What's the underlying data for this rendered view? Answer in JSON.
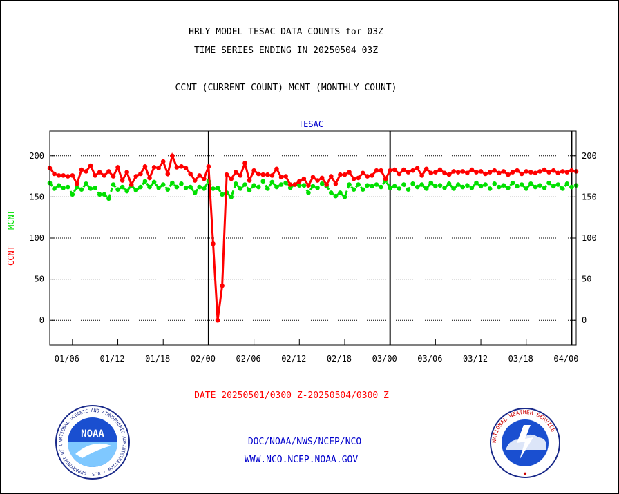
{
  "header": {
    "title_line1": "HRLY MODEL TESAC DATA COUNTS for 03Z",
    "title_line2": "TIME SERIES ENDING IN 20250504 03Z",
    "subtitle": "CCNT (CURRENT COUNT) MCNT (MONTHLY COUNT)"
  },
  "footer": {
    "date_range": "DATE 20250501/0300 Z-20250504/0300 Z",
    "link1": "DOC/NOAA/NWS/NCEP/NCO",
    "link2": "WWW.NCO.NCEP.NOAA.GOV"
  },
  "logos": {
    "noaa_text": "NOAA",
    "noaa_ring": "NATIONAL OCEANIC AND ATMOSPHERIC ADMINISTRATION · U.S. DEPARTMENT OF COMMERCE",
    "nws_ring": "NATIONAL WEATHER SERVICE"
  },
  "colors": {
    "ccnt": "#ff0000",
    "mcnt": "#00e000",
    "panel_title": "#0000cc",
    "footer_link": "#0000cc"
  },
  "chart_data": {
    "type": "line",
    "title": "TESAC",
    "ylabel_ccnt": "CCNT",
    "ylabel_mcnt": "MCNT",
    "ylim": [
      -30,
      230
    ],
    "yticks": [
      0,
      50,
      100,
      150,
      200
    ],
    "xlim": [
      0,
      116
    ],
    "x_tick_labels": [
      {
        "x": 5,
        "label": "01/06"
      },
      {
        "x": 15,
        "label": "01/12"
      },
      {
        "x": 25,
        "label": "01/18"
      },
      {
        "x": 35,
        "label": "02/00"
      },
      {
        "x": 45,
        "label": "02/06"
      },
      {
        "x": 55,
        "label": "02/12"
      },
      {
        "x": 65,
        "label": "02/18"
      },
      {
        "x": 75,
        "label": "03/00"
      },
      {
        "x": 85,
        "label": "03/06"
      },
      {
        "x": 95,
        "label": "03/12"
      },
      {
        "x": 105,
        "label": "03/18"
      },
      {
        "x": 115,
        "label": "04/00"
      }
    ],
    "day_boundaries": [
      35,
      75,
      115
    ],
    "grid": "horizontal dotted",
    "series": [
      {
        "name": "CCNT",
        "color": "#ff0000",
        "x": [
          0,
          1,
          2,
          3,
          4,
          5,
          6,
          7,
          8,
          9,
          10,
          11,
          12,
          13,
          14,
          15,
          16,
          17,
          18,
          19,
          20,
          21,
          22,
          23,
          24,
          25,
          26,
          27,
          28,
          29,
          30,
          31,
          32,
          33,
          34,
          35,
          36,
          37,
          38,
          39,
          40,
          41,
          42,
          43,
          44,
          45,
          46,
          47,
          48,
          49,
          50,
          51,
          52,
          53,
          54,
          55,
          56,
          57,
          58,
          59,
          60,
          61,
          62,
          63,
          64,
          65,
          66,
          67,
          68,
          69,
          70,
          71,
          72,
          73,
          74,
          75,
          76,
          77,
          78,
          79,
          80,
          81,
          82,
          83,
          84,
          85,
          86,
          87,
          88,
          89,
          90,
          91,
          92,
          93,
          94,
          95,
          96,
          97,
          98,
          99,
          100,
          101,
          102,
          103,
          104,
          105,
          106,
          107,
          108,
          109,
          110,
          111,
          112,
          113,
          114,
          115,
          116,
          117
        ],
        "values": [
          185,
          178,
          176,
          176,
          175,
          176,
          166,
          183,
          181,
          188,
          176,
          180,
          176,
          181,
          175,
          186,
          170,
          180,
          165,
          175,
          178,
          187,
          173,
          186,
          185,
          193,
          178,
          200,
          186,
          187,
          185,
          178,
          170,
          176,
          172,
          187,
          93,
          0,
          42,
          177,
          172,
          180,
          176,
          191,
          170,
          182,
          178,
          177,
          177,
          176,
          184,
          174,
          175,
          165,
          165,
          169,
          172,
          164,
          174,
          170,
          173,
          165,
          175,
          166,
          177,
          177,
          180,
          172,
          173,
          179,
          175,
          176,
          182,
          182,
          172,
          182,
          183,
          178,
          183,
          180,
          182,
          185,
          176,
          184,
          179,
          180,
          183,
          179,
          177,
          181,
          180,
          181,
          179,
          183,
          180,
          181,
          178,
          180,
          182,
          179,
          181,
          177,
          180,
          182,
          178,
          181,
          180,
          179,
          181,
          183,
          180,
          182,
          179,
          181,
          180,
          182,
          181,
          183
        ]
      },
      {
        "name": "MCNT",
        "color": "#00e000",
        "x": [
          0,
          1,
          2,
          3,
          4,
          5,
          6,
          7,
          8,
          9,
          10,
          11,
          12,
          13,
          14,
          15,
          16,
          17,
          18,
          19,
          20,
          21,
          22,
          23,
          24,
          25,
          26,
          27,
          28,
          29,
          30,
          31,
          32,
          33,
          34,
          35,
          36,
          37,
          38,
          39,
          40,
          41,
          42,
          43,
          44,
          45,
          46,
          47,
          48,
          49,
          50,
          51,
          52,
          53,
          54,
          55,
          56,
          57,
          58,
          59,
          60,
          61,
          62,
          63,
          64,
          65,
          66,
          67,
          68,
          69,
          70,
          71,
          72,
          73,
          74,
          75,
          76,
          77,
          78,
          79,
          80,
          81,
          82,
          83,
          84,
          85,
          86,
          87,
          88,
          89,
          90,
          91,
          92,
          93,
          94,
          95,
          96,
          97,
          98,
          99,
          100,
          101,
          102,
          103,
          104,
          105,
          106,
          107,
          108,
          109,
          110,
          111,
          112,
          113,
          114,
          115,
          116,
          117
        ],
        "values": [
          167,
          160,
          164,
          161,
          162,
          153,
          162,
          159,
          166,
          160,
          161,
          153,
          153,
          148,
          165,
          159,
          162,
          157,
          164,
          158,
          162,
          169,
          162,
          168,
          161,
          165,
          159,
          167,
          162,
          166,
          161,
          162,
          155,
          162,
          160,
          169,
          160,
          161,
          153,
          155,
          150,
          166,
          160,
          165,
          158,
          164,
          162,
          169,
          160,
          168,
          162,
          165,
          167,
          161,
          165,
          164,
          164,
          155,
          163,
          161,
          166,
          163,
          155,
          151,
          155,
          150,
          165,
          159,
          165,
          159,
          164,
          163,
          165,
          162,
          170,
          161,
          163,
          160,
          165,
          159,
          166,
          162,
          165,
          160,
          167,
          163,
          164,
          161,
          166,
          160,
          165,
          162,
          164,
          161,
          167,
          163,
          165,
          160,
          166,
          162,
          164,
          161,
          167,
          163,
          165,
          160,
          166,
          162,
          164,
          161,
          167,
          163,
          165,
          160,
          166,
          162,
          164,
          168
        ]
      }
    ]
  }
}
